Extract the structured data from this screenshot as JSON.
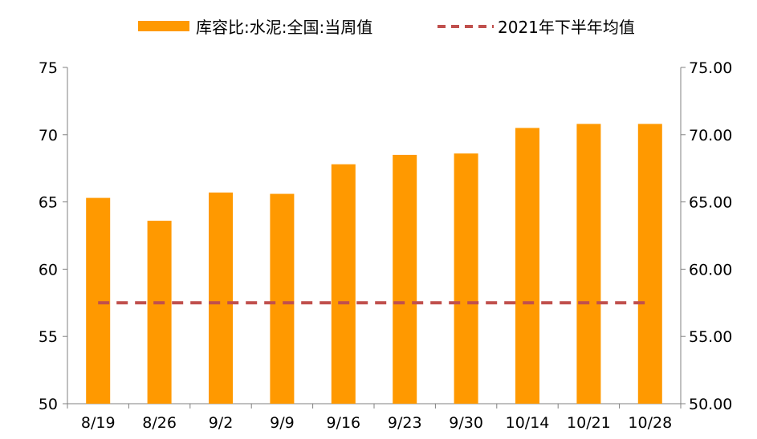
{
  "chart_data": {
    "type": "bar",
    "categories": [
      "8/19",
      "8/26",
      "9/2",
      "9/9",
      "9/16",
      "9/23",
      "9/30",
      "10/14",
      "10/21",
      "10/28"
    ],
    "series": [
      {
        "name": "库容比:水泥:全国:当周值",
        "type": "bar",
        "color": "#FF9900",
        "values": [
          65.3,
          63.6,
          65.7,
          65.6,
          67.8,
          68.5,
          68.6,
          70.5,
          70.8,
          70.8
        ]
      },
      {
        "name": "2021年下半年均值",
        "type": "line",
        "style": "dashed",
        "color": "#C0504D",
        "values": [
          57.5,
          57.5,
          57.5,
          57.5,
          57.5,
          57.5,
          57.5,
          57.5,
          57.5,
          57.5
        ]
      }
    ],
    "ylim": [
      50,
      75
    ],
    "yticks": [
      "50",
      "55",
      "60",
      "65",
      "70",
      "75"
    ],
    "y2lim": [
      50,
      75
    ],
    "y2ticks": [
      "50.00",
      "55.00",
      "60.00",
      "65.00",
      "70.00",
      "75.00"
    ],
    "legend_position": "top",
    "grid": false
  }
}
